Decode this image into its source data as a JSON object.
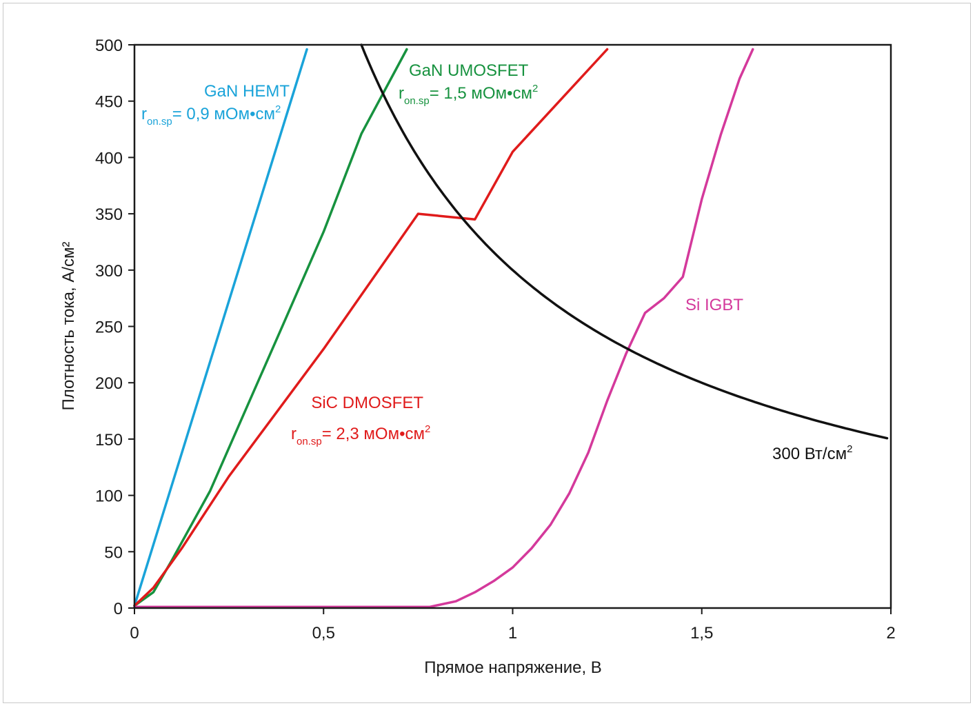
{
  "chart_data": {
    "type": "line",
    "title": "",
    "xlabel": "Прямое напряжение, В",
    "ylabel": "Плотность тока, А/см²",
    "xlim": [
      0,
      2
    ],
    "ylim": [
      0,
      500
    ],
    "x_ticks": [
      {
        "value": 0,
        "label": "0"
      },
      {
        "value": 0.5,
        "label": "0,5"
      },
      {
        "value": 1,
        "label": "1"
      },
      {
        "value": 1.5,
        "label": "1,5"
      },
      {
        "value": 2,
        "label": "2"
      }
    ],
    "y_ticks": [
      {
        "value": 0,
        "label": "0"
      },
      {
        "value": 50,
        "label": "50"
      },
      {
        "value": 100,
        "label": "100"
      },
      {
        "value": 150,
        "label": "150"
      },
      {
        "value": 200,
        "label": "200"
      },
      {
        "value": 250,
        "label": "250"
      },
      {
        "value": 300,
        "label": "300"
      },
      {
        "value": 350,
        "label": "350"
      },
      {
        "value": 400,
        "label": "400"
      },
      {
        "value": 450,
        "label": "450"
      },
      {
        "value": 500,
        "label": "500"
      }
    ],
    "grid": false,
    "series": [
      {
        "id": "gan-hemt",
        "color": "#1aa3d9",
        "points": [
          [
            0.0,
            2
          ],
          [
            0.456,
            496
          ]
        ],
        "annotation": {
          "name": "GaN HEMT",
          "r_prefix": "r",
          "r_sub": "on.sp",
          "r_value": "= 0,9 мОм•см",
          "r_sup": "2"
        }
      },
      {
        "id": "gan-umosfet",
        "color": "#17923f",
        "points": [
          [
            0.0,
            2
          ],
          [
            0.05,
            14
          ],
          [
            0.1,
            43
          ],
          [
            0.2,
            104
          ],
          [
            0.29,
            173
          ],
          [
            0.4,
            257
          ],
          [
            0.5,
            334
          ],
          [
            0.6,
            421
          ],
          [
            0.72,
            496
          ]
        ],
        "annotation": {
          "name": "GaN UMOSFET",
          "r_prefix": "r",
          "r_sub": "on.sp",
          "r_value": "= 1,5 мОм•см",
          "r_sup": "2"
        }
      },
      {
        "id": "sic-dmosfet",
        "color": "#e01b1b",
        "points": [
          [
            0.0,
            2
          ],
          [
            0.05,
            18
          ],
          [
            0.125,
            53
          ],
          [
            0.25,
            117
          ],
          [
            0.5,
            230
          ],
          [
            0.75,
            350
          ],
          [
            0.9,
            345
          ],
          [
            1.0,
            405
          ],
          [
            1.25,
            496
          ]
        ],
        "annotation": {
          "name": "SiC DMOSFET",
          "r_prefix": "r",
          "r_sub": "on.sp",
          "r_value": "= 2,3 мОм•см",
          "r_sup": "2"
        }
      },
      {
        "id": "si-igbt",
        "color": "#d4399b",
        "points": [
          [
            0.0,
            1
          ],
          [
            0.78,
            1
          ],
          [
            0.85,
            6
          ],
          [
            0.9,
            14
          ],
          [
            0.95,
            24
          ],
          [
            1.0,
            36
          ],
          [
            1.05,
            53
          ],
          [
            1.1,
            74
          ],
          [
            1.15,
            102
          ],
          [
            1.2,
            138
          ],
          [
            1.25,
            184
          ],
          [
            1.3,
            226
          ],
          [
            1.35,
            262
          ],
          [
            1.4,
            275
          ],
          [
            1.45,
            294
          ],
          [
            1.5,
            363
          ],
          [
            1.55,
            420
          ],
          [
            1.6,
            470
          ],
          [
            1.635,
            496
          ]
        ],
        "annotation": {
          "name": "Si IGBT"
        }
      },
      {
        "id": "power-300",
        "color": "#111111",
        "formula": "y = 300 / x",
        "x_range": [
          0.6,
          1.99
        ],
        "annotation": {
          "name": "300 Вт/см",
          "sup": "2"
        }
      }
    ]
  }
}
